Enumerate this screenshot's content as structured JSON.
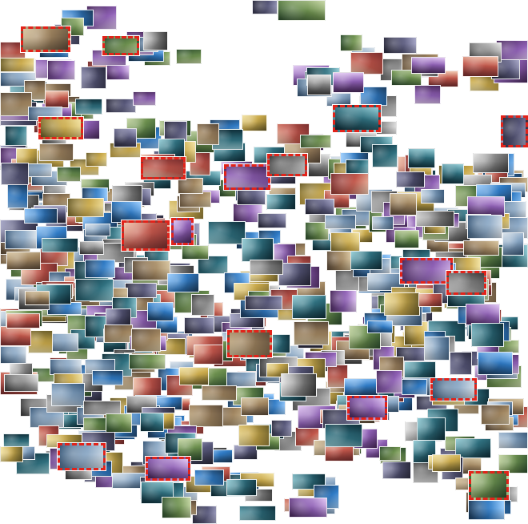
{
  "figure": {
    "description_name": "image-embedding-thumbnail-cluster",
    "highlight_color": "#e2231a"
  }
}
